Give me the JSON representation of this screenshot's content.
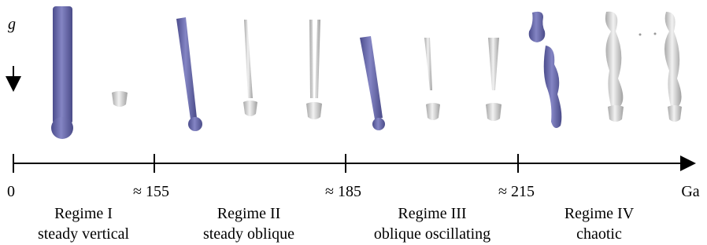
{
  "gravity_label": "g",
  "axis": {
    "label": "Ga",
    "ticks": [
      "0",
      "≈ 155",
      "≈ 185",
      "≈ 215"
    ]
  },
  "regimes": [
    {
      "name": "Regime I",
      "description": "steady vertical"
    },
    {
      "name": "Regime II",
      "description": "steady oblique"
    },
    {
      "name": "Regime III",
      "description": "oblique oscillating"
    },
    {
      "name": "Regime IV",
      "description": "chaotic"
    }
  ]
}
